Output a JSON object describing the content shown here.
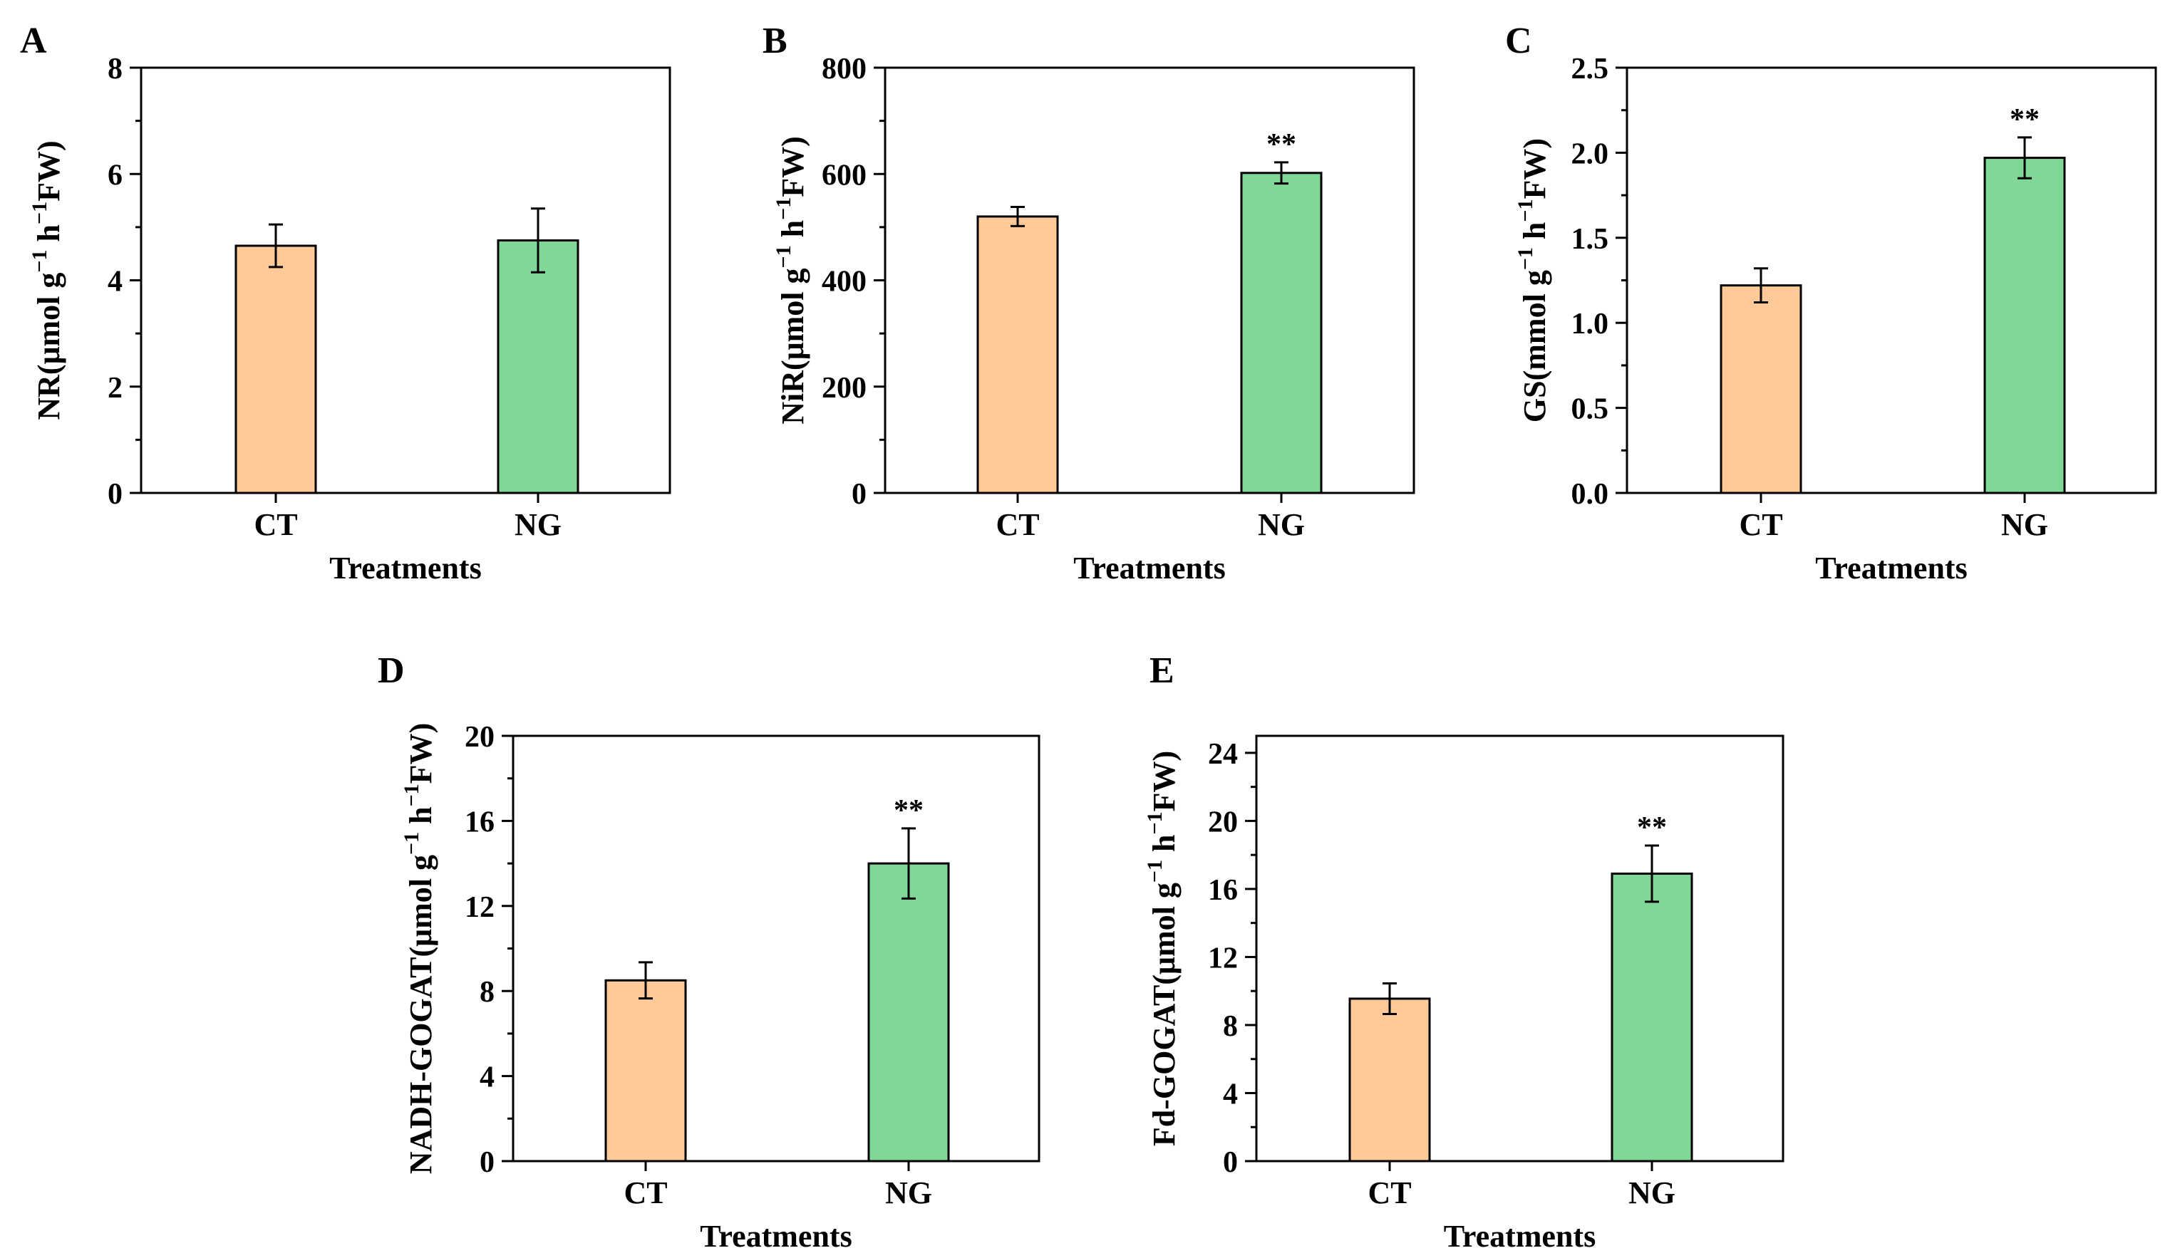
{
  "colors": {
    "ct_bar": "#FFCA98",
    "ng_bar": "#80D898",
    "axis": "#000000"
  },
  "chart_data": [
    {
      "panel": "A",
      "type": "bar",
      "xlabel": "Treatments",
      "ylabel_main": "NR(μmol g",
      "ylabel_mid": " h",
      "ylabel_end": "FW)",
      "ylabel_sup": "−1",
      "categories": [
        "CT",
        "NG"
      ],
      "values": [
        4.65,
        4.75
      ],
      "errors": [
        0.4,
        0.6
      ],
      "ylim": [
        0,
        8
      ],
      "yticks": [
        "0",
        "2",
        "4",
        "6",
        "8"
      ],
      "significance": [
        "",
        ""
      ]
    },
    {
      "panel": "B",
      "type": "bar",
      "xlabel": "Treatments",
      "ylabel_main": "NiR(μmol g",
      "ylabel_mid": " h",
      "ylabel_end": "FW)",
      "ylabel_sup": "−1",
      "categories": [
        "CT",
        "NG"
      ],
      "values": [
        520,
        602
      ],
      "errors": [
        18,
        20
      ],
      "ylim": [
        0,
        800
      ],
      "yticks": [
        "0",
        "200",
        "400",
        "600",
        "800"
      ],
      "significance": [
        "",
        "**"
      ]
    },
    {
      "panel": "C",
      "type": "bar",
      "xlabel": "Treatments",
      "ylabel_main": "GS(mmol g",
      "ylabel_mid": " h",
      "ylabel_end": "FW)",
      "ylabel_sup": "−1",
      "categories": [
        "CT",
        "NG"
      ],
      "values": [
        1.22,
        1.97
      ],
      "errors": [
        0.1,
        0.12
      ],
      "ylim": [
        0,
        2.5
      ],
      "yticks": [
        "0.0",
        "0.5",
        "1.0",
        "1.5",
        "2.0",
        "2.5"
      ],
      "significance": [
        "",
        "**"
      ]
    },
    {
      "panel": "D",
      "type": "bar",
      "xlabel": "Treatments",
      "ylabel_main": "NADH-GOGAT(μmol g",
      "ylabel_mid": " h",
      "ylabel_end": "FW)",
      "ylabel_sup": "−1",
      "categories": [
        "CT",
        "NG"
      ],
      "values": [
        8.5,
        14.0
      ],
      "errors": [
        0.85,
        1.65
      ],
      "ylim": [
        0,
        20
      ],
      "yticks": [
        "0",
        "4",
        "8",
        "12",
        "16",
        "20"
      ],
      "significance": [
        "",
        "**"
      ]
    },
    {
      "panel": "E",
      "type": "bar",
      "xlabel": "Treatments",
      "ylabel_main": "Fd-GOGAT(μmol g",
      "ylabel_mid": " h",
      "ylabel_end": "FW)",
      "ylabel_sup": "−1",
      "categories": [
        "CT",
        "NG"
      ],
      "values": [
        9.55,
        16.9
      ],
      "errors": [
        0.9,
        1.65
      ],
      "ylim": [
        0,
        25
      ],
      "yticks": [
        "0",
        "4",
        "8",
        "12",
        "16",
        "20",
        "24"
      ],
      "significance": [
        "",
        "**"
      ]
    }
  ]
}
